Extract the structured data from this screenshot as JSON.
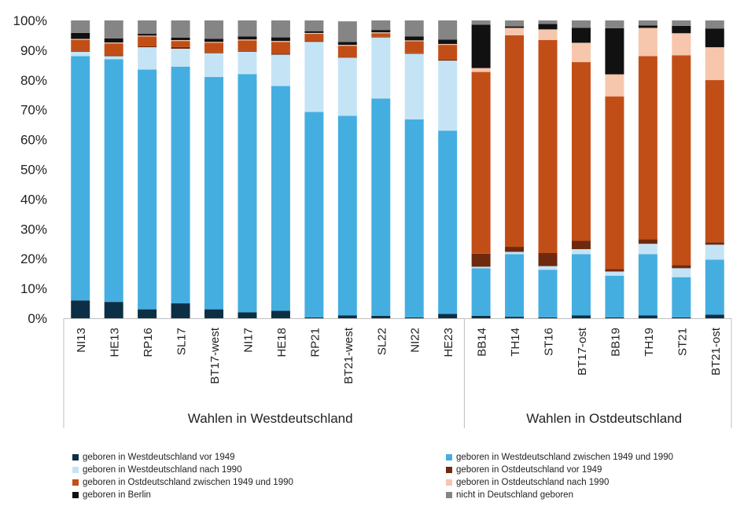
{
  "chart_data": {
    "type": "stacked-bar-100",
    "title": "",
    "xlabel": "",
    "ylabel": "",
    "ylim": [
      0,
      100
    ],
    "yticks": [
      "0%",
      "10%",
      "20%",
      "30%",
      "40%",
      "50%",
      "60%",
      "70%",
      "80%",
      "90%",
      "100%"
    ],
    "grid": false,
    "legend_position": "bottom",
    "categories": [
      "NI13",
      "HE13",
      "RP16",
      "SL17",
      "BT17-west",
      "NI17",
      "HE18",
      "RP21",
      "BT21-west",
      "SL22",
      "NI22",
      "HE23",
      "BB14",
      "TH14",
      "ST16",
      "BT17-ost",
      "BB19",
      "TH19",
      "ST21",
      "BT21-ost"
    ],
    "groups": [
      {
        "label": "Wahlen in Westdeutschland",
        "count": 12
      },
      {
        "label": "Wahlen in Ostdeutschland",
        "count": 8
      }
    ],
    "series": [
      {
        "name": "geboren in Westdeutschland vor 1949",
        "color": "#0d2f45",
        "values": [
          6,
          5.5,
          3,
          5,
          3,
          2,
          2.5,
          0.3,
          1,
          0.8,
          0.3,
          1.5,
          0.8,
          0.5,
          0.3,
          1,
          0.3,
          1,
          0.3,
          1.2
        ]
      },
      {
        "name": "geboren in Westdeutschland zwischen 1949 und 1990",
        "color": "#45aee0",
        "values": [
          82,
          81.5,
          80.5,
          79.5,
          78,
          80,
          75.5,
          69,
          67,
          73,
          66.5,
          61.5,
          16,
          21,
          16,
          20.5,
          14,
          20.5,
          13.5,
          18.5
        ]
      },
      {
        "name": "geboren in Westdeutschland nach 1990",
        "color": "#c4e4f6",
        "values": [
          1.5,
          1,
          7.5,
          6,
          8,
          7.5,
          10.5,
          23.5,
          19.5,
          20.5,
          22,
          23.5,
          0.5,
          0.8,
          1.2,
          1.7,
          1.4,
          3.5,
          3,
          5
        ]
      },
      {
        "name": "geboren in Ostdeutschland vor 1949",
        "color": "#6e2a0e",
        "values": [
          0.3,
          0.3,
          0.3,
          0.6,
          0.2,
          0.3,
          0.3,
          0.2,
          0.2,
          0.2,
          0.2,
          0.3,
          4.4,
          1.7,
          4.4,
          2.8,
          0.8,
          1.5,
          1,
          0.8
        ]
      },
      {
        "name": "geboren in Ostdeutschland zwischen 1949 und 1990",
        "color": "#c24e17",
        "values": [
          3.7,
          4,
          3.3,
          2,
          3.3,
          3.5,
          4,
          2.5,
          3.8,
          1.2,
          4,
          5,
          61,
          71,
          71.5,
          60,
          58,
          61.5,
          70.5,
          54.5
        ]
      },
      {
        "name": "geboren in Ostdeutschland nach 1990",
        "color": "#f6c6ad",
        "values": [
          0.3,
          0.3,
          0.3,
          0.3,
          0.3,
          0.3,
          0.3,
          0.3,
          0.3,
          0.3,
          0.3,
          0.3,
          1.3,
          2.5,
          3.6,
          6.5,
          7.4,
          9.5,
          7.4,
          11
        ]
      },
      {
        "name": "geboren in Berlin",
        "color": "#111111",
        "values": [
          2,
          1.4,
          0.6,
          0.8,
          1,
          1,
          1.2,
          0.6,
          1,
          0.8,
          1.3,
          1.5,
          14.6,
          0.5,
          1.8,
          5,
          15.5,
          0.8,
          2.5,
          6.3
        ]
      },
      {
        "name": "nicht in Deutschland geboren",
        "color": "#858585",
        "values": [
          4.2,
          6,
          4.5,
          5.8,
          6.2,
          5.4,
          5.7,
          3.6,
          6.9,
          3.2,
          5.4,
          6.4,
          1.4,
          2,
          1.2,
          2.5,
          2.6,
          1.7,
          1.8,
          2.7
        ]
      }
    ]
  }
}
